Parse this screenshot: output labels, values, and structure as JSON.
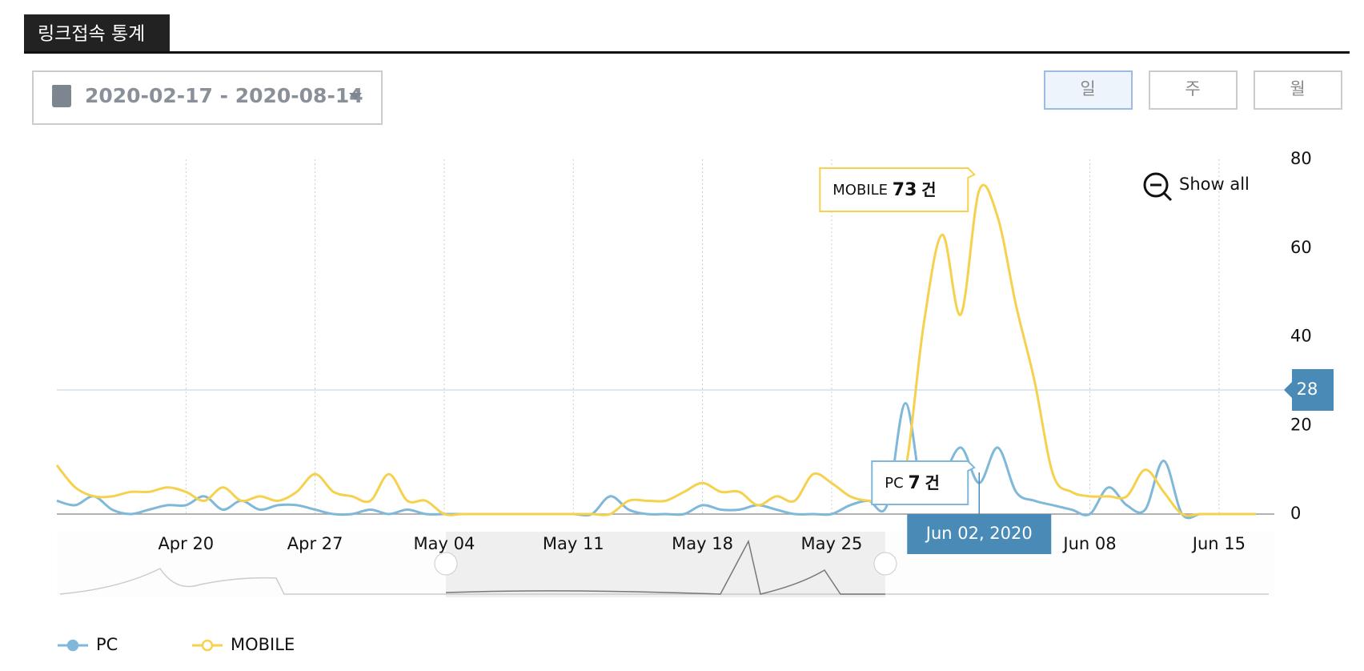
{
  "header": {
    "title": "링크접속 통계"
  },
  "date_range": "2020-02-17 - 2020-08-14",
  "period_buttons": [
    "일",
    "주",
    "월"
  ],
  "zoom_button": "Show all",
  "chart_data": {
    "type": "line",
    "x": [
      "2020-04-13",
      "2020-04-14",
      "2020-04-15",
      "2020-04-16",
      "2020-04-17",
      "2020-04-18",
      "2020-04-19",
      "2020-04-20",
      "2020-04-21",
      "2020-04-22",
      "2020-04-23",
      "2020-04-24",
      "2020-04-25",
      "2020-04-26",
      "2020-04-27",
      "2020-04-28",
      "2020-04-29",
      "2020-04-30",
      "2020-05-01",
      "2020-05-02",
      "2020-05-03",
      "2020-05-04",
      "2020-05-05",
      "2020-05-06",
      "2020-05-07",
      "2020-05-08",
      "2020-05-09",
      "2020-05-10",
      "2020-05-11",
      "2020-05-12",
      "2020-05-13",
      "2020-05-14",
      "2020-05-15",
      "2020-05-16",
      "2020-05-17",
      "2020-05-18",
      "2020-05-19",
      "2020-05-20",
      "2020-05-21",
      "2020-05-22",
      "2020-05-23",
      "2020-05-24",
      "2020-05-25",
      "2020-05-26",
      "2020-05-27",
      "2020-05-28",
      "2020-05-29",
      "2020-05-30",
      "2020-05-31",
      "2020-06-01",
      "2020-06-02",
      "2020-06-03",
      "2020-06-04",
      "2020-06-05",
      "2020-06-06",
      "2020-06-07",
      "2020-06-08",
      "2020-06-09",
      "2020-06-10",
      "2020-06-11",
      "2020-06-12",
      "2020-06-13",
      "2020-06-14",
      "2020-06-15",
      "2020-06-16",
      "2020-06-17"
    ],
    "series": [
      {
        "name": "PC",
        "color": "#7fb8d8",
        "values": [
          3,
          2,
          4,
          1,
          0,
          1,
          2,
          2,
          4,
          1,
          3,
          1,
          2,
          2,
          1,
          0,
          0,
          1,
          0,
          1,
          0,
          0,
          0,
          0,
          0,
          0,
          0,
          0,
          0,
          0,
          4,
          1,
          0,
          0,
          0,
          2,
          1,
          1,
          2,
          1,
          0,
          0,
          0,
          2,
          3,
          2,
          25,
          3,
          8,
          15,
          7,
          15,
          5,
          3,
          2,
          1,
          0,
          6,
          2,
          1,
          12,
          0,
          0,
          0,
          0,
          0
        ]
      },
      {
        "name": "MOBILE",
        "color": "#f5d14e",
        "values": [
          11,
          6,
          4,
          4,
          5,
          5,
          6,
          5,
          3,
          6,
          3,
          4,
          3,
          5,
          9,
          5,
          4,
          3,
          9,
          3,
          3,
          0,
          0,
          0,
          0,
          0,
          0,
          0,
          0,
          0,
          0,
          3,
          3,
          3,
          5,
          7,
          5,
          5,
          2,
          4,
          3,
          9,
          7,
          4,
          3,
          3,
          10,
          43,
          63,
          45,
          73,
          67,
          47,
          30,
          9,
          5,
          4,
          4,
          4,
          10,
          5,
          0,
          0,
          0,
          0,
          0
        ]
      }
    ],
    "xlim": [
      "2020-04-13",
      "2020-06-18"
    ],
    "xticks": [
      {
        "value": "2020-04-20",
        "label": "Apr 20"
      },
      {
        "value": "2020-04-27",
        "label": "Apr 27"
      },
      {
        "value": "2020-05-04",
        "label": "May 04"
      },
      {
        "value": "2020-05-11",
        "label": "May 11"
      },
      {
        "value": "2020-05-18",
        "label": "May 18"
      },
      {
        "value": "2020-05-25",
        "label": "May 25"
      },
      {
        "value": "2020-06-08",
        "label": "Jun 08"
      },
      {
        "value": "2020-06-15",
        "label": "Jun 15"
      }
    ],
    "ylim": [
      0,
      80
    ],
    "yticks": [
      0,
      20,
      40,
      60,
      80
    ],
    "crosshair": 28,
    "tooltip": {
      "date": "Jun 02, 2020",
      "unit": "건"
    },
    "grid": true
  }
}
